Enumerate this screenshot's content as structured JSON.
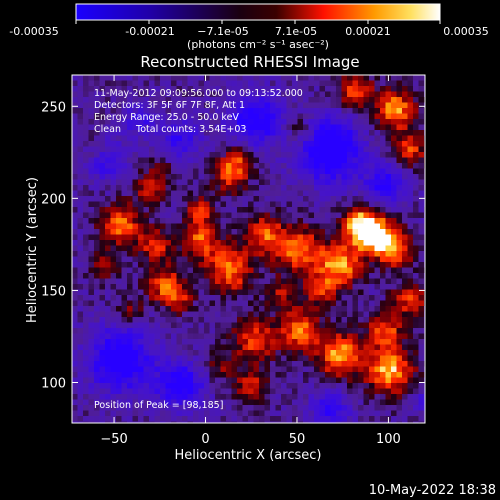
{
  "colorbar": {
    "ticks": [
      "-0.00035",
      "-0.00021",
      "−7.1e-05",
      "7.1e-05",
      "0.00021",
      "0.00035"
    ],
    "unit_label": "(photons cm⁻² s⁻¹ asec⁻²)",
    "range": [
      -0.00035,
      0.00035
    ]
  },
  "chart_data": {
    "type": "heatmap",
    "title": "Reconstructed RHESSI Image",
    "xlabel": "Heliocentric X (arcsec)",
    "ylabel": "Heliocentric Y (arcsec)",
    "xlim": [
      -73,
      120
    ],
    "ylim": [
      78,
      267
    ],
    "x_ticks": [
      "−50",
      "0",
      "50",
      "100"
    ],
    "x_tick_values": [
      -50,
      0,
      50,
      100
    ],
    "y_ticks": [
      "100",
      "150",
      "200",
      "250"
    ],
    "y_tick_values": [
      100,
      150,
      200,
      250
    ],
    "colormap": [
      "#0000ff",
      "#000000",
      "#ff0000",
      "#ffaa00",
      "#ffffff"
    ],
    "peak": [
      98,
      185
    ],
    "info_lines": [
      "11-May-2012 09:09:56.000 to 09:13:52.000",
      "Detectors: 3F 5F 6F 7F 8F, Att 1",
      "Energy Range: 25.0 - 50.0 keV",
      "Clean     Total counts: 3.54E+03"
    ],
    "peak_label": "Position of Peak = [98,185]"
  },
  "footer": {
    "timestamp": "10-May-2022 18:38"
  }
}
